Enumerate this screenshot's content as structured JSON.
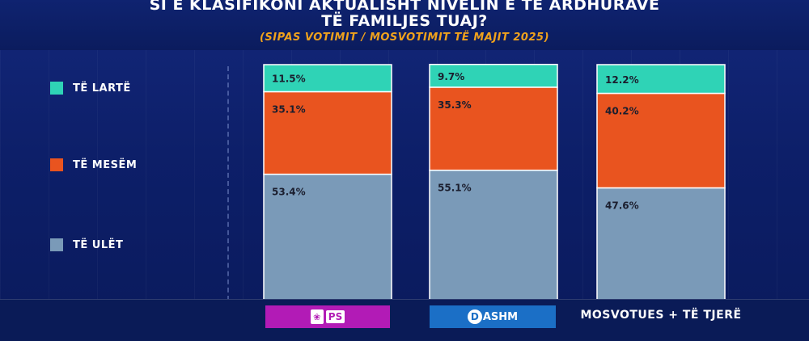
{
  "header": {
    "title_line1": "SI E KLASIFIKONI AKTUALISHT NIVELIN E TË ARDHURAVE",
    "title_line2": "TË FAMILJES TUAJ?",
    "subtitle": "(SIPAS VOTIMIT / MOSVOTIMIT TË MAJIT 2025)"
  },
  "legend": [
    {
      "label": "TË LARTË",
      "color": "#2fd3b6"
    },
    {
      "label": "TË MESËM",
      "color": "#e9541f"
    },
    {
      "label": "TË ULËT",
      "color": "#7a9ab8"
    }
  ],
  "categories": {
    "ps": {
      "logo_text": "PS",
      "emblem_icon": "rose-emblem-icon",
      "color": "#b21bb6"
    },
    "dashm": {
      "logo_text": "ASHM",
      "logo_letter": "D",
      "color": "#1b6fc6"
    },
    "other": {
      "label": "MOSVOTUES + TË TJERË"
    }
  },
  "chart_data": {
    "type": "bar",
    "stacked": true,
    "categories": [
      "PS",
      "DASHM",
      "MOSVOTUES + TË TJERË"
    ],
    "series": [
      {
        "name": "TË ULËT",
        "values": [
          53.4,
          55.1,
          47.6
        ],
        "labels": [
          "53.4%",
          "55.1%",
          "47.6%"
        ],
        "color": "#7a9ab8"
      },
      {
        "name": "TË MESËM",
        "values": [
          35.1,
          35.3,
          40.2
        ],
        "labels": [
          "35.1%",
          "35.3%",
          "40.2%"
        ],
        "color": "#e9541f"
      },
      {
        "name": "TË LARTË",
        "values": [
          11.5,
          9.7,
          12.2
        ],
        "labels": [
          "11.5%",
          "9.7%",
          "12.2%"
        ],
        "color": "#2fd3b6"
      }
    ],
    "title": "SI E KLASIFIKONI AKTUALISHT NIVELIN E TË ARDHURAVE TË FAMILJES TUAJ?",
    "ylim": [
      0,
      100
    ],
    "unit": "%",
    "legend_position": "left",
    "grid": false
  }
}
